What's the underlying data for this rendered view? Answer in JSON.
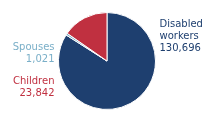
{
  "chart_data": {
    "type": "pie",
    "categories": [
      "Disabled\nworkers",
      "Spouses",
      "Children"
    ],
    "values": [
      130696,
      1021,
      23842
    ],
    "value_labels": [
      "130,696",
      "1,021",
      "23,842"
    ],
    "colors": [
      "#1e3f6f",
      "#7aafc8",
      "#c03040"
    ],
    "data_labels": true
  }
}
